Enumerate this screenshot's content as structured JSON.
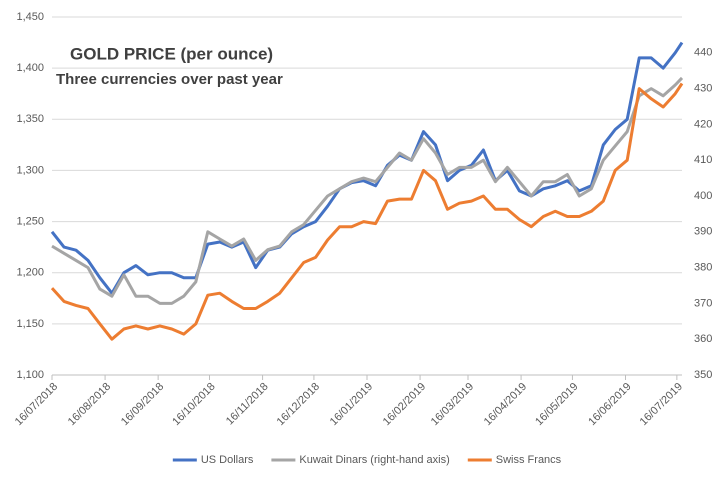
{
  "chart_data": {
    "type": "line",
    "title": "GOLD PRICE (per ounce)",
    "subtitle": "Three currencies over past year",
    "x": [
      "2018-07-16",
      "2018-07-23",
      "2018-07-30",
      "2018-08-06",
      "2018-08-13",
      "2018-08-20",
      "2018-08-27",
      "2018-09-03",
      "2018-09-10",
      "2018-09-17",
      "2018-09-24",
      "2018-10-01",
      "2018-10-08",
      "2018-10-15",
      "2018-10-22",
      "2018-10-29",
      "2018-11-05",
      "2018-11-12",
      "2018-11-19",
      "2018-11-26",
      "2018-12-03",
      "2018-12-10",
      "2018-12-17",
      "2018-12-24",
      "2018-12-31",
      "2019-01-07",
      "2019-01-14",
      "2019-01-21",
      "2019-01-28",
      "2019-02-04",
      "2019-02-11",
      "2019-02-18",
      "2019-02-25",
      "2019-03-04",
      "2019-03-11",
      "2019-03-18",
      "2019-03-25",
      "2019-04-01",
      "2019-04-08",
      "2019-04-15",
      "2019-04-22",
      "2019-04-29",
      "2019-05-06",
      "2019-05-13",
      "2019-05-20",
      "2019-05-27",
      "2019-06-03",
      "2019-06-10",
      "2019-06-17",
      "2019-06-24",
      "2019-07-01",
      "2019-07-08",
      "2019-07-15",
      "2019-07-19"
    ],
    "xlim": [
      "2018-07-16",
      "2019-07-19"
    ],
    "xticks": [
      {
        "value": "2018-07-16",
        "label": "16/07/2018"
      },
      {
        "value": "2018-08-16",
        "label": "16/08/2018"
      },
      {
        "value": "2018-09-16",
        "label": "16/09/2018"
      },
      {
        "value": "2018-10-16",
        "label": "16/10/2018"
      },
      {
        "value": "2018-11-16",
        "label": "16/11/2018"
      },
      {
        "value": "2018-12-16",
        "label": "16/12/2018"
      },
      {
        "value": "2019-01-16",
        "label": "16/01/2019"
      },
      {
        "value": "2019-02-16",
        "label": "16/02/2019"
      },
      {
        "value": "2019-03-16",
        "label": "16/03/2019"
      },
      {
        "value": "2019-04-16",
        "label": "16/04/2019"
      },
      {
        "value": "2019-05-16",
        "label": "16/05/2019"
      },
      {
        "value": "2019-06-16",
        "label": "16/06/2019"
      },
      {
        "value": "2019-07-16",
        "label": "16/07/2019"
      }
    ],
    "ylim": [
      1100,
      1450
    ],
    "yticks": [
      {
        "value": 1100,
        "label": "1,100"
      },
      {
        "value": 1150,
        "label": "1,150"
      },
      {
        "value": 1200,
        "label": "1,200"
      },
      {
        "value": 1250,
        "label": "1,250"
      },
      {
        "value": 1300,
        "label": "1,300"
      },
      {
        "value": 1350,
        "label": "1,350"
      },
      {
        "value": 1400,
        "label": "1,400"
      },
      {
        "value": 1450,
        "label": "1,450"
      }
    ],
    "y2lim": [
      350,
      450
    ],
    "y2ticks": [
      350,
      360,
      370,
      380,
      390,
      400,
      410,
      420,
      430,
      440
    ],
    "grid": true,
    "legend": "bottom",
    "series": [
      {
        "name": "US Dollars",
        "color": "#4472c4",
        "values": [
          1240,
          1225,
          1222,
          1212,
          1195,
          1180,
          1200,
          1207,
          1198,
          1200,
          1200,
          1195,
          1195,
          1228,
          1230,
          1225,
          1230,
          1205,
          1222,
          1225,
          1238,
          1245,
          1250,
          1265,
          1282,
          1288,
          1290,
          1285,
          1305,
          1315,
          1310,
          1338,
          1325,
          1290,
          1300,
          1305,
          1320,
          1290,
          1300,
          1280,
          1275,
          1282,
          1285,
          1290,
          1280,
          1285,
          1325,
          1340,
          1350,
          1410,
          1410,
          1400,
          1415,
          1425
        ]
      },
      {
        "name": "Kuwait Dinars (right-hand axis)",
        "color": "#a5a5a5",
        "axis": "y2",
        "values": [
          386,
          384,
          382,
          380,
          374,
          372,
          378,
          372,
          372,
          370,
          370,
          372,
          376,
          390,
          388,
          386,
          388,
          382,
          385,
          386,
          390,
          392,
          396,
          400,
          402,
          404,
          405,
          404,
          408,
          412,
          410,
          416,
          412,
          406,
          408,
          408,
          410,
          404,
          408,
          404,
          400,
          404,
          404,
          406,
          400,
          402,
          410,
          414,
          418,
          428,
          430,
          428,
          431,
          433
        ]
      },
      {
        "name": "Swiss Francs",
        "color": "#ed7d31",
        "values": [
          1185,
          1172,
          1168,
          1165,
          1150,
          1135,
          1145,
          1148,
          1145,
          1148,
          1145,
          1140,
          1150,
          1178,
          1180,
          1172,
          1165,
          1165,
          1172,
          1180,
          1195,
          1210,
          1215,
          1232,
          1245,
          1245,
          1250,
          1248,
          1270,
          1272,
          1272,
          1300,
          1290,
          1262,
          1268,
          1270,
          1275,
          1262,
          1262,
          1252,
          1245,
          1255,
          1260,
          1255,
          1255,
          1260,
          1270,
          1300,
          1310,
          1380,
          1370,
          1362,
          1375,
          1385
        ]
      }
    ]
  }
}
